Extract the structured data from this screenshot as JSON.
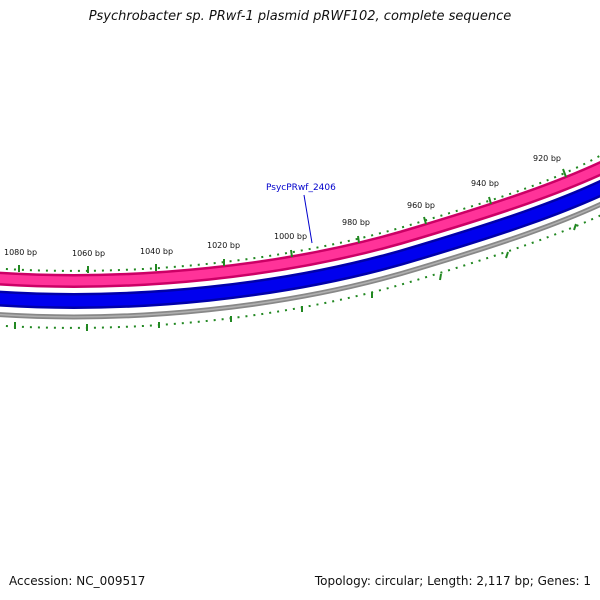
{
  "title": "Psychrobacter sp. PRwf-1 plasmid pRWF102, complete sequence",
  "footer": {
    "accession": "Accession: NC_009517",
    "summary": "Topology: circular; Length: 2,117 bp; Genes: 1"
  },
  "map": {
    "tick_labels": [
      "920 bp",
      "940 bp",
      "960 bp",
      "980 bp",
      "1000 bp",
      "1020 bp",
      "1040 bp",
      "1060 bp",
      "1080 bp"
    ],
    "gene_label": "PsycPRwf_2406",
    "colors": {
      "forward_feature": "#ff3399",
      "forward_feature_edge": "#cc0066",
      "reverse_feature": "#0000ee",
      "reverse_feature_edge": "#0000aa",
      "backbone": "#888888",
      "ticks": "#228822",
      "gene_label": "#0000cc"
    }
  }
}
